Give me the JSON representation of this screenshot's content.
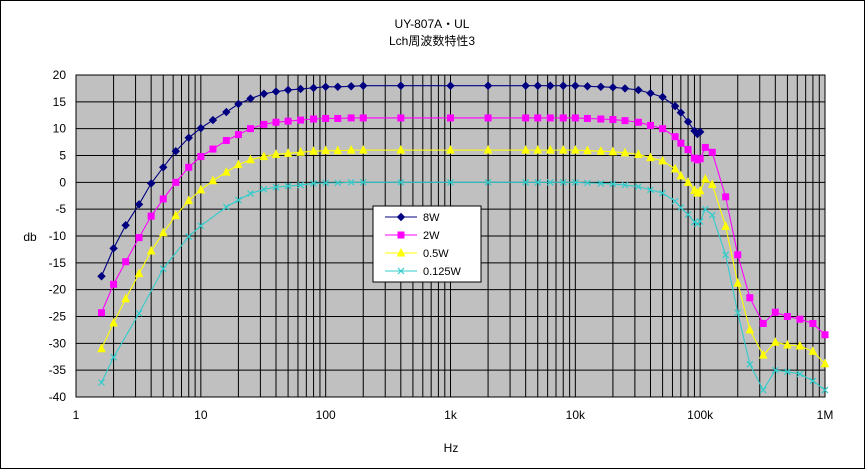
{
  "chart_data": {
    "type": "line",
    "title": "UY-807A・UL",
    "subtitle": "Lch周波数特性3",
    "xlabel": "Hz",
    "ylabel": "db",
    "xscale": "log",
    "xlim": [
      1,
      1000000
    ],
    "ylim": [
      -40,
      20
    ],
    "x_tick_labels": [
      "1",
      "10",
      "100",
      "1k",
      "10k",
      "100k",
      "1M"
    ],
    "y_ticks": [
      20,
      15,
      10,
      5,
      0,
      -5,
      -10,
      -15,
      -20,
      -25,
      -30,
      -35,
      -40
    ],
    "grid": true,
    "background": "#c0c0c0",
    "legend_position": "center-left",
    "x": [
      1.6,
      2,
      2.5,
      3.2,
      4,
      5,
      6.3,
      8,
      10,
      12.5,
      16,
      20,
      25,
      32,
      40,
      50,
      63,
      80,
      100,
      125,
      160,
      200,
      400,
      1000,
      2000,
      4000,
      5000,
      6300,
      8000,
      10000,
      12500,
      16000,
      20000,
      25000,
      32000,
      40000,
      50000,
      63000,
      70000,
      80000,
      90000,
      95000,
      100000,
      110000,
      125000,
      160000,
      200000,
      250000,
      320000,
      400000,
      500000,
      630000,
      800000,
      1000000
    ],
    "series": [
      {
        "name": "8W",
        "color": "#000080",
        "marker": "diamond",
        "values": [
          -17.5,
          -12.3,
          -8,
          -4.1,
          -0.2,
          2.8,
          5.8,
          8.3,
          10.1,
          11.6,
          13.1,
          14.6,
          15.6,
          16.5,
          16.9,
          17.2,
          17.4,
          17.6,
          17.8,
          17.8,
          17.9,
          18,
          18,
          18,
          18,
          18,
          18,
          18,
          18,
          18,
          17.9,
          17.8,
          17.7,
          17.5,
          17.2,
          16.6,
          15.9,
          14.2,
          13,
          11.3,
          9.6,
          9,
          9.4,
          null,
          null,
          null,
          null,
          null,
          null,
          null,
          null,
          null,
          null,
          null
        ]
      },
      {
        "name": "2W",
        "color": "#ff00ff",
        "marker": "square",
        "values": [
          -24.3,
          -19,
          -14.8,
          -10.3,
          -6.3,
          -3.1,
          0,
          2.8,
          4.8,
          6.2,
          7.8,
          8.9,
          10,
          10.8,
          11.2,
          11.4,
          11.6,
          11.8,
          11.9,
          11.9,
          12,
          12,
          12,
          12,
          12,
          12,
          12,
          12,
          12,
          12,
          11.9,
          11.8,
          11.7,
          11.5,
          11.2,
          10.6,
          10,
          8.5,
          7.3,
          6.1,
          4.5,
          4.2,
          4.4,
          6.5,
          5.6,
          -2.7,
          -13.5,
          -21.5,
          -26.3,
          -24.2,
          -25,
          -25.5,
          -26.3,
          -28.4
        ]
      },
      {
        "name": "0.5W",
        "color": "#ffff00",
        "marker": "triangle",
        "values": [
          -31,
          -26.2,
          -21.7,
          -17,
          -12.8,
          -9.4,
          -6.2,
          -3.4,
          -1.4,
          0.3,
          1.9,
          3.3,
          4.2,
          4.8,
          5.2,
          5.4,
          5.6,
          5.8,
          5.9,
          5.9,
          6,
          6,
          6,
          6,
          6,
          6,
          6,
          6,
          6,
          6,
          5.9,
          5.8,
          5.7,
          5.5,
          5.2,
          4.6,
          4,
          2.5,
          1.2,
          0,
          -1.5,
          -2,
          -1.6,
          0.6,
          -0.4,
          -8.2,
          -18.8,
          -27.5,
          -32.2,
          -29.8,
          -30.3,
          -30.5,
          -31.5,
          -33.8
        ]
      },
      {
        "name": "0.125W",
        "color": "#33cccc",
        "marker": "x",
        "values": [
          -37.3,
          -32.6,
          null,
          -24.4,
          null,
          -16.1,
          null,
          -10.1,
          -8.1,
          null,
          -4.6,
          -3.3,
          -2.1,
          -1.3,
          -0.9,
          -0.7,
          -0.5,
          -0.2,
          -0.1,
          -0.1,
          0,
          0,
          0,
          0,
          0,
          0,
          0,
          0,
          0,
          0,
          -0.1,
          -0.2,
          -0.3,
          -0.5,
          -0.8,
          -1.4,
          -2,
          -3.5,
          -4.7,
          -6,
          -7.4,
          -7.7,
          -7.3,
          -5,
          -6.1,
          -13.5,
          -24.3,
          -33.9,
          -38.7,
          -35,
          -35.3,
          -35.7,
          -37,
          -38.7
        ]
      }
    ]
  }
}
